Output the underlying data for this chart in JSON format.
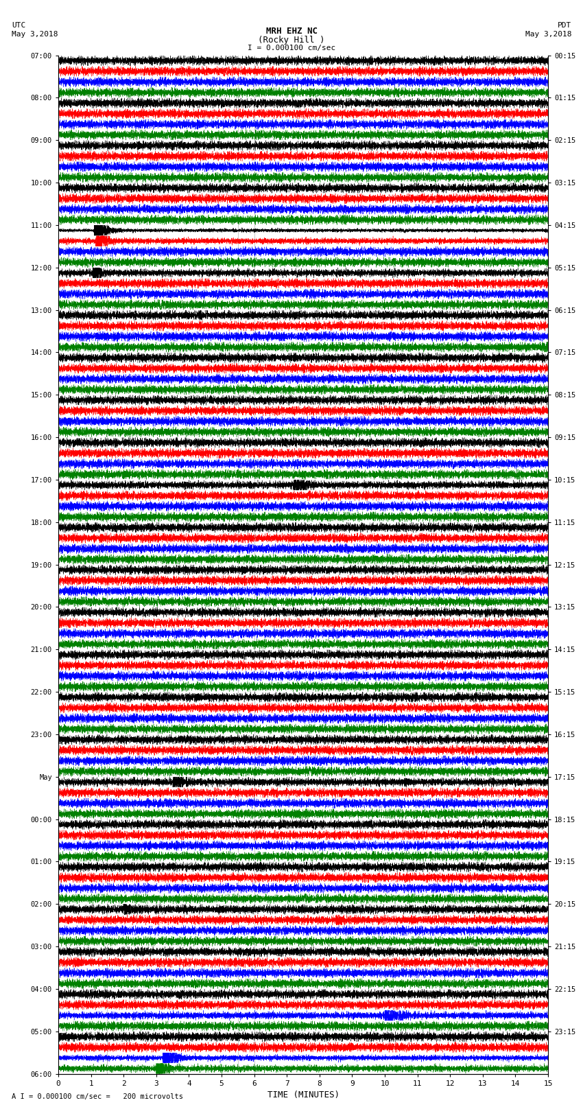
{
  "title_line1": "MRH EHZ NC",
  "title_line2": "(Rocky Hill )",
  "scale_label": "I = 0.000100 cm/sec",
  "bottom_label": "A I = 0.000100 cm/sec =   200 microvolts",
  "xlabel": "TIME (MINUTES)",
  "utc_label": "UTC",
  "utc_date": "May 3,2018",
  "pdt_label": "PDT",
  "pdt_date": "May 3,2018",
  "left_times": [
    "07:00",
    "08:00",
    "09:00",
    "10:00",
    "11:00",
    "12:00",
    "13:00",
    "14:00",
    "15:00",
    "16:00",
    "17:00",
    "18:00",
    "19:00",
    "20:00",
    "21:00",
    "22:00",
    "23:00",
    "May",
    "00:00",
    "01:00",
    "02:00",
    "03:00",
    "04:00",
    "05:00",
    "06:00"
  ],
  "right_times": [
    "00:15",
    "01:15",
    "02:15",
    "03:15",
    "04:15",
    "05:15",
    "06:15",
    "07:15",
    "08:15",
    "09:15",
    "10:15",
    "11:15",
    "12:15",
    "13:15",
    "14:15",
    "15:15",
    "16:15",
    "17:15",
    "18:15",
    "19:15",
    "20:15",
    "21:15",
    "22:15",
    "23:15"
  ],
  "xticks": [
    0,
    1,
    2,
    3,
    4,
    5,
    6,
    7,
    8,
    9,
    10,
    11,
    12,
    13,
    14,
    15
  ],
  "colors": [
    "black",
    "red",
    "blue",
    "green"
  ],
  "n_rows": 24,
  "traces_per_row": 4,
  "fig_width": 8.5,
  "fig_height": 16.13,
  "bg_color": "white",
  "sample_rate": 500,
  "minutes": 15
}
